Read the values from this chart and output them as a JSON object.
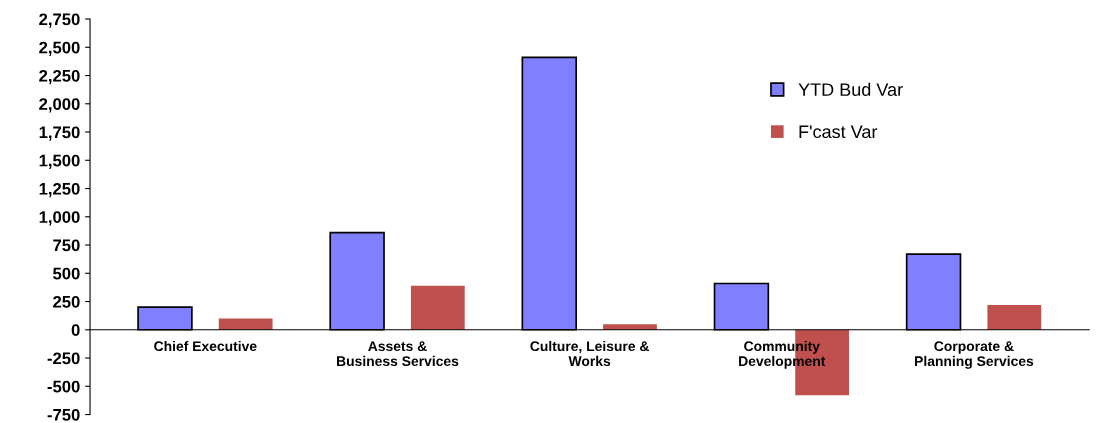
{
  "chart_data": {
    "type": "bar",
    "categories": [
      "Chief Executive",
      "Assets &\nBusiness Services",
      "Culture, Leisure &\nWorks",
      "Community\nDevelopment",
      "Corporate &\nPlanning Services"
    ],
    "series": [
      {
        "name": "YTD Bud Var",
        "color": "#8080ff",
        "values": [
          200,
          860,
          2410,
          410,
          670
        ]
      },
      {
        "name": "F'cast Var",
        "color": "#c0504d",
        "values": [
          100,
          390,
          50,
          -580,
          220
        ]
      }
    ],
    "ylim": [
      -750,
      2750
    ],
    "yticks": [
      {
        "value": -750,
        "label": "-750"
      },
      {
        "value": -500,
        "label": "-500"
      },
      {
        "value": -250,
        "label": "-250"
      },
      0,
      250,
      500,
      750,
      {
        "value": 1000,
        "label": "1,000"
      },
      {
        "value": 1250,
        "label": "1,250"
      },
      {
        "value": 1500,
        "label": "1,500"
      },
      {
        "value": 1750,
        "label": "1,750"
      },
      {
        "value": 2000,
        "label": "2,000"
      },
      {
        "value": 2250,
        "label": "2,250"
      },
      {
        "value": 2500,
        "label": "2,500"
      },
      {
        "value": 2750,
        "label": "2,750"
      }
    ],
    "grid": false,
    "legend": "top right"
  }
}
